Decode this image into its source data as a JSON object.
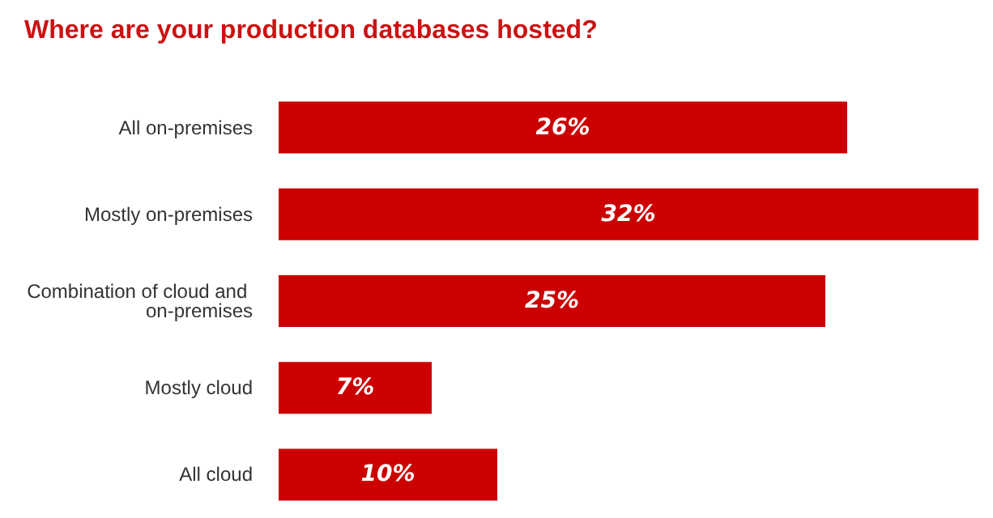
{
  "chart_data": {
    "type": "bar",
    "orientation": "horizontal",
    "title": "Where are your production databases hosted?",
    "categories": [
      "All on-premises",
      "Mostly on-premises",
      "Combination of cloud and on-premises",
      "Mostly cloud",
      "All cloud"
    ],
    "values": [
      26,
      32,
      25,
      7,
      10
    ],
    "value_labels": [
      "26%",
      "32%",
      "25%",
      "7%",
      "10%"
    ],
    "color": "#cc0000"
  }
}
